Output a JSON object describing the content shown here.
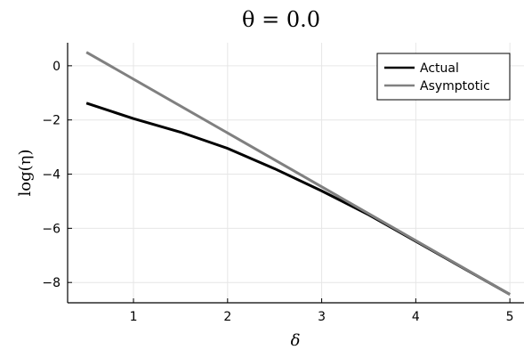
{
  "chart_data": {
    "type": "line",
    "title": "θ = 0.0",
    "xlabel": "δ",
    "ylabel": "log(η)",
    "xlim": [
      0.3,
      5.15
    ],
    "ylim": [
      -8.75,
      0.85
    ],
    "xticks": [
      1,
      2,
      3,
      4,
      5
    ],
    "yticks": [
      0,
      -2,
      -4,
      -6,
      -8
    ],
    "x_tick_labels": [
      "1",
      "2",
      "3",
      "4",
      "5"
    ],
    "y_tick_labels": [
      "0",
      "−2",
      "−4",
      "−6",
      "−8"
    ],
    "grid": true,
    "legend_position": "top-right",
    "series": [
      {
        "name": "Actual",
        "color": "#000000",
        "x": [
          0.5,
          1.0,
          1.5,
          2.0,
          2.5,
          3.0,
          3.5,
          4.0,
          4.5,
          5.0
        ],
        "y": [
          -1.38,
          -1.95,
          -2.45,
          -3.05,
          -3.8,
          -4.62,
          -5.5,
          -6.48,
          -7.46,
          -8.44
        ]
      },
      {
        "name": "Asymptotic",
        "color": "#808080",
        "x": [
          0.5,
          5.0
        ],
        "y": [
          0.5,
          -8.44
        ]
      }
    ]
  }
}
